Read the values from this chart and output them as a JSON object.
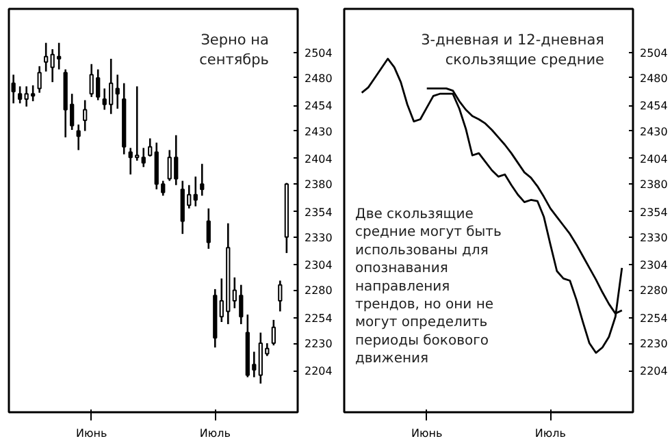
{
  "chart_data": [
    {
      "type": "candlestick",
      "title": "Зерно на сентябрь",
      "categories": [
        null,
        null,
        null,
        null,
        null,
        null,
        null,
        null,
        null,
        null,
        null,
        null,
        "Июнь",
        null,
        null,
        null,
        null,
        null,
        null,
        null,
        null,
        null,
        null,
        null,
        null,
        null,
        null,
        null,
        null,
        null,
        null,
        "Июль",
        null,
        null,
        null,
        null,
        null,
        null,
        null,
        null,
        null,
        null,
        null
      ],
      "ohlc": [
        [
          2475,
          2483,
          2456,
          2467
        ],
        [
          2465,
          2472,
          2456,
          2460
        ],
        [
          2460,
          2472,
          2453,
          2465
        ],
        [
          2465,
          2473,
          2458,
          2463
        ],
        [
          2470,
          2491,
          2466,
          2485
        ],
        [
          2495,
          2513,
          2486,
          2500
        ],
        [
          2490,
          2507,
          2476,
          2502
        ],
        [
          2500,
          2513,
          2488,
          2498
        ],
        [
          2485,
          2488,
          2424,
          2450
        ],
        [
          2455,
          2465,
          2431,
          2435
        ],
        [
          2430,
          2436,
          2412,
          2425
        ],
        [
          2440,
          2459,
          2430,
          2450
        ],
        [
          2465,
          2493,
          2462,
          2483
        ],
        [
          2480,
          2488,
          2459,
          2462
        ],
        [
          2460,
          2470,
          2450,
          2455
        ],
        [
          2455,
          2498,
          2446,
          2475
        ],
        [
          2470,
          2483,
          2451,
          2465
        ],
        [
          2460,
          2475,
          2408,
          2415
        ],
        [
          2410,
          2414,
          2389,
          2405
        ],
        [
          2405,
          2472,
          2402,
          2407
        ],
        [
          2405,
          2414,
          2396,
          2400
        ],
        [
          2407,
          2423,
          2406,
          2415
        ],
        [
          2410,
          2419,
          2375,
          2380
        ],
        [
          2380,
          2383,
          2369,
          2372
        ],
        [
          2385,
          2412,
          2383,
          2405
        ],
        [
          2405,
          2426,
          2379,
          2385
        ],
        [
          2375,
          2383,
          2333,
          2345
        ],
        [
          2360,
          2379,
          2357,
          2370
        ],
        [
          2370,
          2387,
          2359,
          2365
        ],
        [
          2380,
          2399,
          2369,
          2375
        ],
        [
          2345,
          2357,
          2319,
          2325
        ],
        [
          2275,
          2281,
          2226,
          2235
        ],
        [
          2255,
          2291,
          2250,
          2270
        ],
        [
          2260,
          2343,
          2248,
          2320
        ],
        [
          2270,
          2292,
          2263,
          2280
        ],
        [
          2275,
          2285,
          2248,
          2255
        ],
        [
          2240,
          2257,
          2198,
          2200
        ],
        [
          2210,
          2222,
          2198,
          2205
        ],
        [
          2200,
          2240,
          2192,
          2230
        ],
        [
          2220,
          2230,
          2218,
          2225
        ],
        [
          2230,
          2252,
          2228,
          2245
        ],
        [
          2270,
          2289,
          2260,
          2285
        ],
        [
          2330,
          2381,
          2315,
          2380
        ]
      ],
      "ylim": [
        2165,
        2545
      ],
      "yticks": [
        2504,
        2480,
        2454,
        2430,
        2404,
        2380,
        2354,
        2330,
        2304,
        2280,
        2254,
        2230,
        2204
      ]
    },
    {
      "type": "line",
      "title": "3-дневная и 12-дневная скользящие средние",
      "annotations": [
        "Две скользящие средние могут быть использованы для опознавания направления трендов, но они не могут определить периоды бокового движения"
      ],
      "categories": [
        null,
        null,
        null,
        null,
        null,
        null,
        null,
        null,
        null,
        null,
        null,
        null,
        "Июнь",
        null,
        null,
        null,
        null,
        null,
        null,
        null,
        null,
        null,
        null,
        null,
        null,
        null,
        null,
        null,
        null,
        null,
        null,
        "Июль",
        null,
        null,
        null,
        null,
        null,
        null,
        null,
        null,
        null,
        null,
        null
      ],
      "series": [
        {
          "color": "#000000",
          "values": [
            null,
            null,
            2466,
            2471,
            2480,
            2489,
            2498,
            2490,
            2476,
            2455,
            2439,
            2441,
            2452,
            2463,
            2465,
            2465,
            2465,
            2451,
            2432,
            2407,
            2409,
            2401,
            2393,
            2387,
            2389,
            2379,
            2370,
            2363,
            2365,
            2364,
            2349,
            2323,
            2298,
            2291,
            2289,
            2271,
            2250,
            2230,
            2221,
            2226,
            2236,
            2255,
            2301
          ]
        },
        {
          "color": "#000000",
          "values": [
            null,
            null,
            null,
            null,
            null,
            null,
            null,
            null,
            null,
            null,
            null,
            null,
            2470,
            2470,
            2470,
            2470,
            2468,
            2458,
            2450,
            2444,
            2441,
            2437,
            2431,
            2424,
            2417,
            2409,
            2400,
            2391,
            2386,
            2378,
            2368,
            2357,
            2349,
            2341,
            2333,
            2323,
            2312,
            2301,
            2290,
            2278,
            2267,
            2258,
            2261
          ]
        }
      ],
      "ylim": [
        2165,
        2545
      ],
      "yticks": [
        2504,
        2480,
        2454,
        2430,
        2404,
        2380,
        2354,
        2330,
        2304,
        2280,
        2254,
        2230,
        2204
      ]
    }
  ]
}
